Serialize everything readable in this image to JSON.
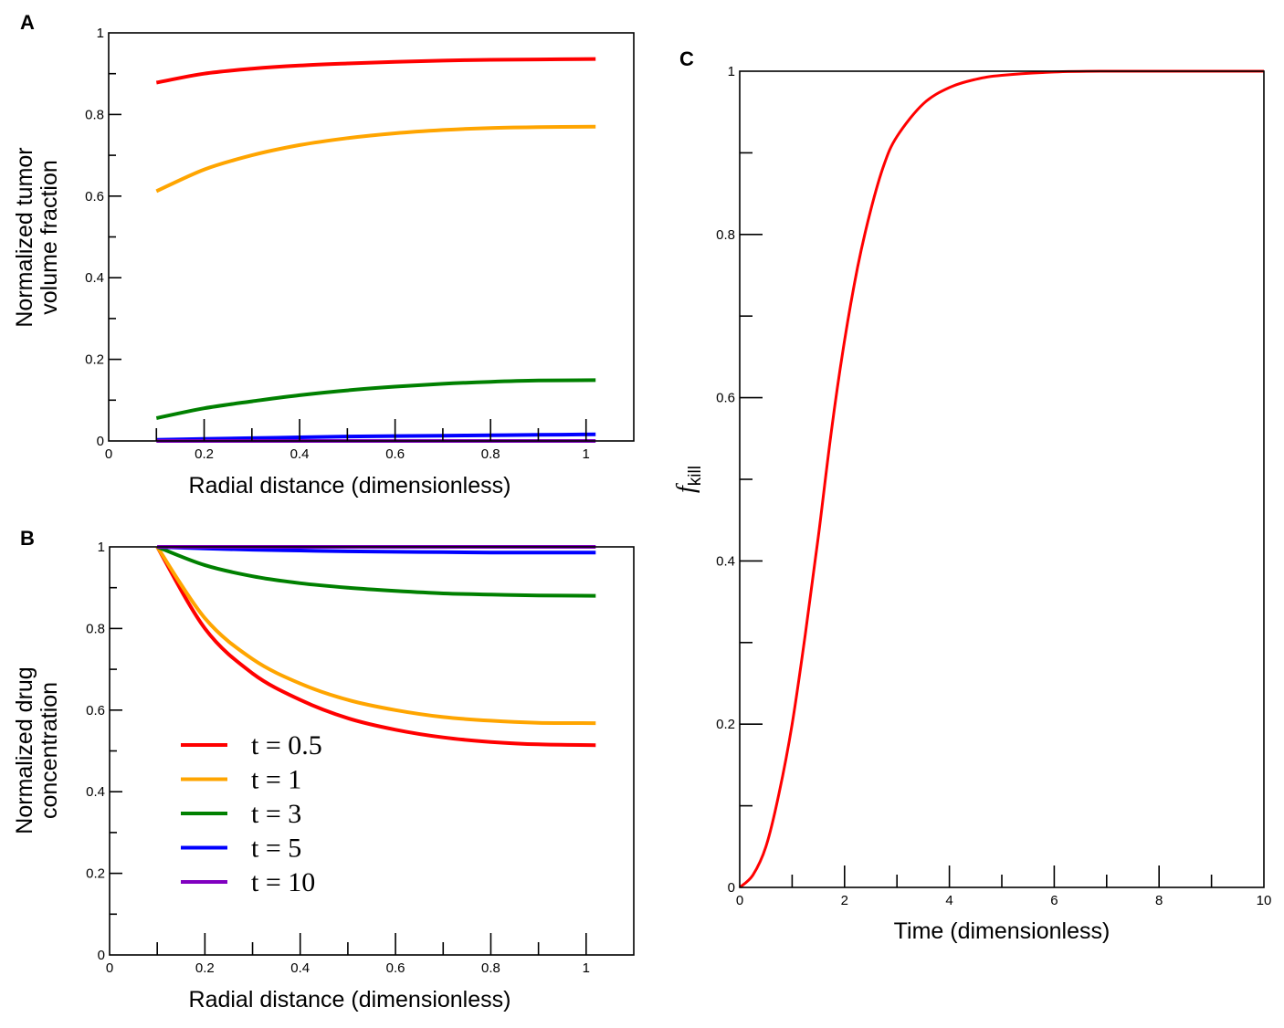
{
  "chart_data": [
    {
      "id": "A",
      "type": "line",
      "panel_label": "A",
      "title": "",
      "xlabel": "Radial distance (dimensionless)",
      "ylabel_lines": [
        "Normalized tumor",
        "volume fraction"
      ],
      "xlim": [
        0,
        1.1
      ],
      "ylim": [
        0,
        1
      ],
      "xticks": [
        0,
        0.2,
        0.4,
        0.6,
        0.8,
        1
      ],
      "xtick_labels": [
        "0",
        "0.2",
        "0.4",
        "0.6",
        "0.8",
        "1"
      ],
      "xminor": [
        0.1,
        0.3,
        0.5,
        0.7,
        0.9
      ],
      "yticks": [
        0,
        0.2,
        0.4,
        0.6,
        0.8,
        1
      ],
      "ytick_labels": [
        "0",
        "0.2",
        "0.4",
        "0.6",
        "0.8",
        "1"
      ],
      "yminor": [
        0.1,
        0.3,
        0.5,
        0.7,
        0.9
      ],
      "grid": false,
      "series": [
        {
          "name": "t = 0.5",
          "color": "#ff0000",
          "x": [
            0.1,
            0.2,
            0.3,
            0.4,
            0.5,
            0.6,
            0.7,
            0.8,
            0.9,
            1.02
          ],
          "y": [
            0.878,
            0.9,
            0.912,
            0.92,
            0.925,
            0.929,
            0.932,
            0.934,
            0.935,
            0.936
          ]
        },
        {
          "name": "t = 1",
          "color": "#ffa500",
          "x": [
            0.1,
            0.2,
            0.3,
            0.4,
            0.5,
            0.6,
            0.7,
            0.8,
            0.9,
            1.02
          ],
          "y": [
            0.612,
            0.665,
            0.7,
            0.725,
            0.742,
            0.754,
            0.762,
            0.767,
            0.769,
            0.77
          ]
        },
        {
          "name": "t = 3",
          "color": "#008000",
          "x": [
            0.1,
            0.2,
            0.3,
            0.4,
            0.5,
            0.6,
            0.7,
            0.8,
            0.9,
            1.02
          ],
          "y": [
            0.056,
            0.08,
            0.097,
            0.112,
            0.124,
            0.133,
            0.14,
            0.145,
            0.148,
            0.149
          ]
        },
        {
          "name": "t = 5",
          "color": "#0000ff",
          "x": [
            0.1,
            0.2,
            0.3,
            0.4,
            0.5,
            0.6,
            0.7,
            0.8,
            0.9,
            1.02
          ],
          "y": [
            0.003,
            0.005,
            0.007,
            0.009,
            0.011,
            0.012,
            0.013,
            0.014,
            0.015,
            0.016
          ]
        },
        {
          "name": "t = 10",
          "color": "#8000c0",
          "x": [
            0.1,
            1.02
          ],
          "y": [
            0.0,
            0.0
          ]
        }
      ]
    },
    {
      "id": "B",
      "type": "line",
      "panel_label": "B",
      "title": "",
      "xlabel": "Radial distance (dimensionless)",
      "ylabel_lines": [
        "Normalized drug",
        "concentration"
      ],
      "xlim": [
        0,
        1.1
      ],
      "ylim": [
        0,
        1
      ],
      "xticks": [
        0,
        0.2,
        0.4,
        0.6,
        0.8,
        1
      ],
      "xtick_labels": [
        "0",
        "0.2",
        "0.4",
        "0.6",
        "0.8",
        "1"
      ],
      "xminor": [
        0.1,
        0.3,
        0.5,
        0.7,
        0.9
      ],
      "yticks": [
        0,
        0.2,
        0.4,
        0.6,
        0.8,
        1
      ],
      "ytick_labels": [
        "0",
        "0.2",
        "0.4",
        "0.6",
        "0.8",
        "1"
      ],
      "yminor": [
        0.1,
        0.3,
        0.5,
        0.7,
        0.9
      ],
      "grid": false,
      "legend_position": "lower-left",
      "series": [
        {
          "name": "t = 0.5",
          "color": "#ff0000",
          "x": [
            0.1,
            0.2,
            0.3,
            0.4,
            0.5,
            0.6,
            0.7,
            0.8,
            0.9,
            1.02
          ],
          "y": [
            1.0,
            0.8,
            0.69,
            0.625,
            0.58,
            0.552,
            0.533,
            0.522,
            0.516,
            0.514
          ]
        },
        {
          "name": "t = 1",
          "color": "#ffa500",
          "x": [
            0.1,
            0.2,
            0.3,
            0.4,
            0.5,
            0.6,
            0.7,
            0.8,
            0.9,
            1.02
          ],
          "y": [
            1.0,
            0.825,
            0.725,
            0.665,
            0.625,
            0.6,
            0.583,
            0.574,
            0.569,
            0.568
          ]
        },
        {
          "name": "t = 3",
          "color": "#008000",
          "x": [
            0.1,
            0.2,
            0.3,
            0.4,
            0.5,
            0.6,
            0.7,
            0.8,
            0.9,
            1.02
          ],
          "y": [
            1.0,
            0.955,
            0.928,
            0.911,
            0.9,
            0.892,
            0.886,
            0.883,
            0.881,
            0.88
          ]
        },
        {
          "name": "t = 5",
          "color": "#0000ff",
          "x": [
            0.1,
            0.2,
            0.3,
            0.4,
            0.5,
            0.6,
            0.7,
            0.8,
            0.9,
            1.02
          ],
          "y": [
            1.0,
            0.996,
            0.993,
            0.991,
            0.989,
            0.988,
            0.987,
            0.986,
            0.986,
            0.986
          ]
        },
        {
          "name": "t = 10",
          "color": "#8000c0",
          "x": [
            0.1,
            1.02
          ],
          "y": [
            1.0,
            1.0
          ]
        }
      ]
    },
    {
      "id": "C",
      "type": "line",
      "panel_label": "C",
      "title": "",
      "xlabel": "Time (dimensionless)",
      "ylabel_main": "f",
      "ylabel_sub": "kill",
      "xlim": [
        0,
        10
      ],
      "ylim": [
        0,
        1
      ],
      "xticks": [
        0,
        2,
        4,
        6,
        8,
        10
      ],
      "xtick_labels": [
        "0",
        "2",
        "4",
        "6",
        "8",
        "10"
      ],
      "xminor": [
        1,
        3,
        5,
        7,
        9
      ],
      "yticks": [
        0,
        0.2,
        0.4,
        0.6,
        0.8,
        1
      ],
      "ytick_labels": [
        "0",
        "0.2",
        "0.4",
        "0.6",
        "0.8",
        "1"
      ],
      "yminor": [
        0.1,
        0.3,
        0.5,
        0.7,
        0.9
      ],
      "grid": false,
      "series": [
        {
          "name": "f_kill",
          "color": "#ff0000",
          "x": [
            0,
            0.25,
            0.5,
            0.75,
            1,
            1.25,
            1.5,
            1.75,
            2,
            2.25,
            2.5,
            2.75,
            3,
            3.5,
            4,
            4.5,
            5,
            6,
            7,
            8,
            10
          ],
          "y": [
            0,
            0.015,
            0.05,
            0.115,
            0.2,
            0.31,
            0.43,
            0.56,
            0.67,
            0.76,
            0.83,
            0.885,
            0.92,
            0.96,
            0.98,
            0.99,
            0.995,
            0.999,
            1.0,
            1.0,
            1.0
          ]
        }
      ]
    }
  ]
}
